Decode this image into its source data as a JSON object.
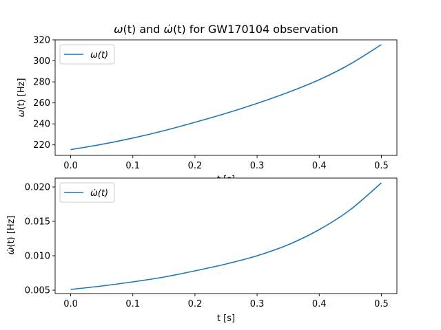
{
  "chart_data": [
    {
      "type": "line",
      "title_parts": {
        "sym1": "ω",
        "arg1": "(t)",
        "mid": " and ",
        "sym2": "ω̇",
        "arg2": "(t)",
        "rest": " for GW170104 observation"
      },
      "xlabel": "t [s]",
      "ylabel_parts": {
        "sym": "ω",
        "rest": "(t) [Hz]"
      },
      "xlim": [
        -0.025,
        0.525
      ],
      "ylim": [
        210,
        320
      ],
      "xticks": [
        0.0,
        0.1,
        0.2,
        0.3,
        0.4,
        0.5
      ],
      "xtick_labels": [
        "0.0",
        "0.1",
        "0.2",
        "0.3",
        "0.4",
        "0.5"
      ],
      "yticks": [
        220,
        240,
        260,
        280,
        300,
        320
      ],
      "ytick_labels": [
        "220",
        "240",
        "260",
        "280",
        "300",
        "320"
      ],
      "legend": "top-left",
      "series": [
        {
          "name_parts": {
            "sym": "ω",
            "rest": "(t)"
          },
          "color": "#1f77b4",
          "x": [
            0.0,
            0.05,
            0.1,
            0.15,
            0.2,
            0.25,
            0.3,
            0.35,
            0.4,
            0.45,
            0.5
          ],
          "y": [
            215.5,
            220.5,
            226.5,
            233.5,
            241.5,
            250.0,
            259.5,
            270.0,
            282.0,
            297.0,
            315.5
          ]
        }
      ],
      "grid": false
    },
    {
      "type": "line",
      "xlabel": "t [s]",
      "ylabel_parts": {
        "sym": "ω̇",
        "rest": "(t) [Hz]"
      },
      "xlim": [
        -0.025,
        0.525
      ],
      "ylim": [
        0.0045,
        0.0213
      ],
      "xticks": [
        0.0,
        0.1,
        0.2,
        0.3,
        0.4,
        0.5
      ],
      "xtick_labels": [
        "0.0",
        "0.1",
        "0.2",
        "0.3",
        "0.4",
        "0.5"
      ],
      "yticks": [
        0.005,
        0.01,
        0.015,
        0.02
      ],
      "ytick_labels": [
        "0.005",
        "0.010",
        "0.015",
        "0.020"
      ],
      "legend": "top-left",
      "series": [
        {
          "name_parts": {
            "sym": "ω̇",
            "rest": "(t)"
          },
          "color": "#1f77b4",
          "x": [
            0.0,
            0.05,
            0.1,
            0.15,
            0.2,
            0.25,
            0.3,
            0.35,
            0.4,
            0.45,
            0.5
          ],
          "y": [
            0.0051,
            0.0056,
            0.0062,
            0.0069,
            0.0078,
            0.0088,
            0.01,
            0.0116,
            0.0138,
            0.0167,
            0.0206
          ]
        }
      ],
      "grid": false
    }
  ]
}
